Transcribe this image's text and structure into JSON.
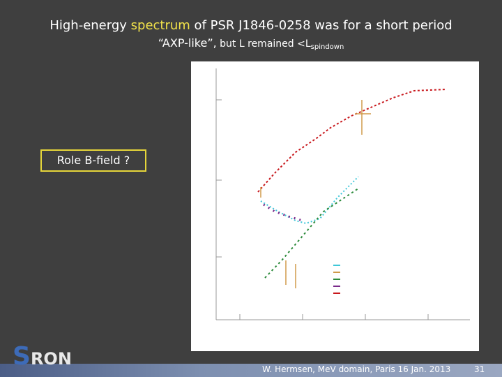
{
  "title": {
    "line1": [
      "High-energy ",
      "spectrum",
      " of PSR J1846-0258 was for a short period"
    ],
    "line2": [
      "“AXP-like”,",
      " but L remained <L",
      "spindown"
    ]
  },
  "annotation": "Role B-field ?",
  "footer": {
    "text": "W. Hermsen, MeV domain, Paris 16 Jan. 2013",
    "page": "31"
  },
  "logo": [
    "S",
    "RON"
  ]
}
